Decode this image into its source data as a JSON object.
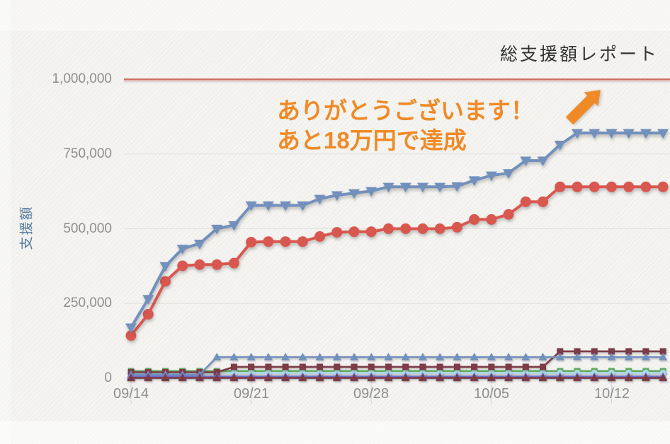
{
  "header": {
    "title": "総支援額レポート"
  },
  "annotation": {
    "line1": "ありがとうございます！",
    "line2": "あと18万円で達成",
    "color": "#ef8a26",
    "arrow_color": "#ef8a26"
  },
  "axes": {
    "y_title": "支援額",
    "y_ticks": [
      "1,000,000",
      "750,000",
      "500,000",
      "250,000",
      "0"
    ],
    "x_ticks": [
      "09/14",
      "09/21",
      "09/28",
      "10/05",
      "10/12"
    ]
  },
  "chart_data": {
    "type": "line",
    "title": "総支援額レポート",
    "ylabel": "支援額",
    "xlabel": "",
    "ylim": [
      0,
      1050000
    ],
    "goal_line_value": 1000000,
    "goal_line_color": "#ce5f55",
    "grid": "horizontal-only",
    "grid_color": "#e2e1dc",
    "legend": "none",
    "x": [
      "09/14",
      "09/15",
      "09/16",
      "09/17",
      "09/18",
      "09/19",
      "09/20",
      "09/21",
      "09/22",
      "09/23",
      "09/24",
      "09/25",
      "09/26",
      "09/27",
      "09/28",
      "09/29",
      "09/30",
      "10/01",
      "10/02",
      "10/03",
      "10/04",
      "10/05",
      "10/06",
      "10/07",
      "10/08",
      "10/09",
      "10/10",
      "10/11",
      "10/12",
      "10/13",
      "10/14",
      "10/15"
    ],
    "series": [
      {
        "name": "series-green-squares",
        "color": "#63ab63",
        "marker": "square",
        "values": [
          24000,
          24000,
          24000,
          24000,
          24000,
          24000,
          24000,
          24000,
          24000,
          24000,
          24000,
          24000,
          24000,
          24000,
          24000,
          24000,
          24000,
          24000,
          24000,
          24000,
          24000,
          24000,
          24000,
          24000,
          24000,
          24000,
          24000,
          24000,
          24000,
          24000,
          24000,
          24000
        ]
      },
      {
        "name": "series-cyan-circles",
        "color": "#abd9e6",
        "marker": "circle",
        "values": [
          18000,
          18000,
          18000,
          18000,
          18000,
          18000,
          18000,
          18000,
          18000,
          18000,
          18000,
          18000,
          18000,
          18000,
          18000,
          18000,
          18000,
          18000,
          18000,
          18000,
          18000,
          18000,
          18000,
          18000,
          18000,
          18000,
          18000,
          18000,
          18000,
          18000,
          18000,
          18000
        ]
      },
      {
        "name": "series-darkred-squares",
        "color": "#7c3b46",
        "marker": "square",
        "values": [
          20000,
          20000,
          20000,
          20000,
          20000,
          20000,
          38000,
          38000,
          38000,
          38000,
          38000,
          38000,
          38000,
          38000,
          38000,
          38000,
          38000,
          38000,
          38000,
          38000,
          38000,
          38000,
          38000,
          38000,
          38000,
          90000,
          90000,
          90000,
          90000,
          90000,
          90000,
          90000
        ]
      },
      {
        "name": "series-lightblue-triangles-small",
        "color": "#7290bc",
        "marker": "triangle-up",
        "values": [
          12000,
          12000,
          12000,
          12000,
          12000,
          71000,
          71000,
          71000,
          71000,
          71000,
          71000,
          71000,
          71000,
          71000,
          71000,
          71000,
          71000,
          71000,
          71000,
          71000,
          71000,
          71000,
          71000,
          71000,
          71000,
          71000,
          71000,
          71000,
          71000,
          71000,
          71000,
          71000
        ]
      },
      {
        "name": "series-violet-triangles",
        "color": "#6f6fc9",
        "marker": "triangle-up",
        "values": [
          6000,
          6000,
          6000,
          6000,
          6000,
          6000,
          6000,
          6000,
          6000,
          6000,
          6000,
          6000,
          6000,
          6000,
          6000,
          6000,
          6000,
          6000,
          6000,
          6000,
          6000,
          6000,
          6000,
          6000,
          6000,
          6000,
          6000,
          6000,
          6000,
          6000,
          6000,
          6000
        ]
      },
      {
        "name": "series-darkred-triangles-baseline",
        "color": "#7c3b46",
        "marker": "triangle-up",
        "values": [
          1000,
          1000,
          1000,
          1000,
          1000,
          1000,
          1000,
          1000,
          1000,
          1000,
          1000,
          1000,
          1000,
          1000,
          1000,
          1000,
          1000,
          1000,
          1000,
          1000,
          1000,
          1000,
          1000,
          1000,
          1000,
          1000,
          1000,
          1000,
          1000,
          1000,
          1000,
          1000
        ]
      },
      {
        "name": "series-red-main",
        "color": "#d8574f",
        "marker": "circle",
        "values": [
          143000,
          214000,
          324000,
          376000,
          380000,
          380000,
          385000,
          455000,
          457000,
          457000,
          457000,
          474000,
          488000,
          490000,
          490000,
          500000,
          500000,
          500000,
          500000,
          505000,
          531000,
          531000,
          548000,
          590000,
          590000,
          640000,
          640000,
          640000,
          640000,
          640000,
          640000,
          640000
        ]
      },
      {
        "name": "series-blue-total",
        "color": "#7290bc",
        "marker": "triangle-down",
        "values": [
          170000,
          265000,
          375000,
          433000,
          450000,
          500000,
          512000,
          578000,
          578000,
          578000,
          578000,
          600000,
          612000,
          619000,
          626000,
          640000,
          640000,
          640000,
          640000,
          642000,
          662000,
          678000,
          686000,
          728000,
          728000,
          781000,
          820000,
          820000,
          820000,
          820000,
          820000,
          820000
        ]
      }
    ]
  }
}
